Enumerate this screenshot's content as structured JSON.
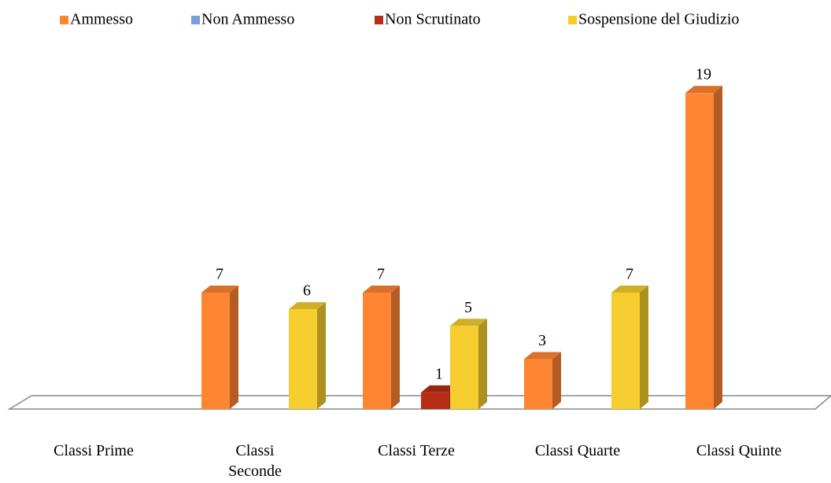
{
  "chart_data": {
    "type": "bar3d",
    "categories": [
      "Classi Prime",
      "Classi Seconde",
      "Classi Terze",
      "Classi Quarte",
      "Classi Quinte"
    ],
    "series": [
      {
        "name": "Ammesso",
        "color": "#ff8533",
        "values": [
          null,
          7,
          7,
          3,
          19
        ]
      },
      {
        "name": "Non Ammesso",
        "color": "#7a9fd8",
        "values": [
          null,
          null,
          null,
          null,
          null
        ]
      },
      {
        "name": "Non Scrutinato",
        "color": "#b82d17",
        "values": [
          null,
          null,
          1,
          null,
          null
        ]
      },
      {
        "name": "Sospensione del Giudizio",
        "color": "#f5cd2e",
        "values": [
          null,
          6,
          5,
          7,
          null
        ]
      }
    ],
    "legend": "top"
  }
}
